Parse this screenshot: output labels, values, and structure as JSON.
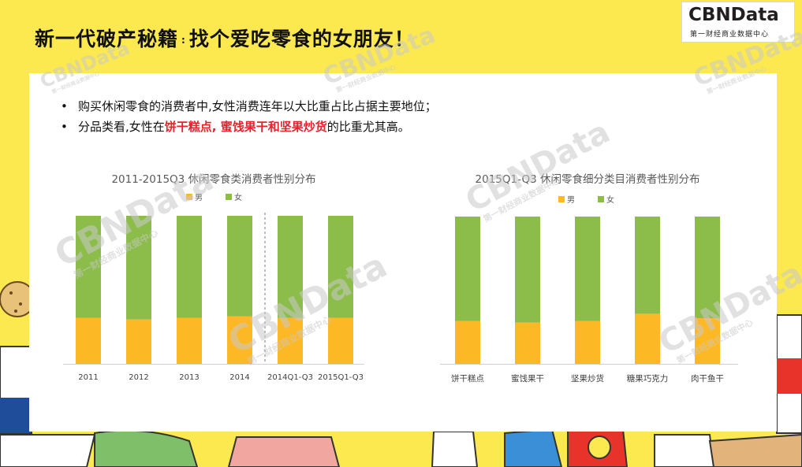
{
  "page": {
    "title_part1": "新一代破产秘籍",
    "title_sep": ":",
    "title_part2": "找个爱吃零食的女朋友！",
    "logo_main": "CBNData",
    "logo_sub": "第一财经商业数据中心",
    "bullet1": "购买休闲零食的消费者中,女性消费连年以大比重占比占据主要地位；",
    "bullet2_pre": "分品类看,女性在",
    "bullet2_hl": "饼干糕点, 蜜饯果干和坚果炒货",
    "bullet2_post": "的比重尤其高。",
    "watermark": "CBNData",
    "watermark_sub": "第一财经商业数据中心"
  },
  "colors": {
    "male": "#fdb925",
    "female": "#8cbd4b",
    "background": "#fbe94f"
  },
  "chart_data": [
    {
      "type": "bar",
      "stacked": true,
      "title": "2011-2015Q3 休闲零食类消费者性别分布",
      "categories": [
        "2011",
        "2012",
        "2013",
        "2014",
        "2014Q1-Q3",
        "2015Q1-Q3"
      ],
      "series": [
        {
          "name": "男",
          "values": [
            0.31,
            0.3,
            0.31,
            0.32,
            0.31,
            0.31
          ]
        },
        {
          "name": "女",
          "values": [
            0.69,
            0.7,
            0.69,
            0.68,
            0.69,
            0.69
          ]
        }
      ],
      "ylim": [
        0,
        1
      ],
      "divider_after_index": 3,
      "legend": "top-center",
      "grid": false
    },
    {
      "type": "bar",
      "stacked": true,
      "title": "2015Q1-Q3 休闲零食细分类目消费者性别分布",
      "categories": [
        "饼干糕点",
        "蜜饯果干",
        "坚果炒货",
        "糖果巧克力",
        "肉干鱼干"
      ],
      "series": [
        {
          "name": "男",
          "values": [
            0.29,
            0.28,
            0.29,
            0.34,
            0.31
          ]
        },
        {
          "name": "女",
          "values": [
            0.71,
            0.72,
            0.71,
            0.66,
            0.69
          ]
        }
      ],
      "ylim": [
        0,
        1
      ],
      "legend": "top-center",
      "grid": false
    }
  ]
}
